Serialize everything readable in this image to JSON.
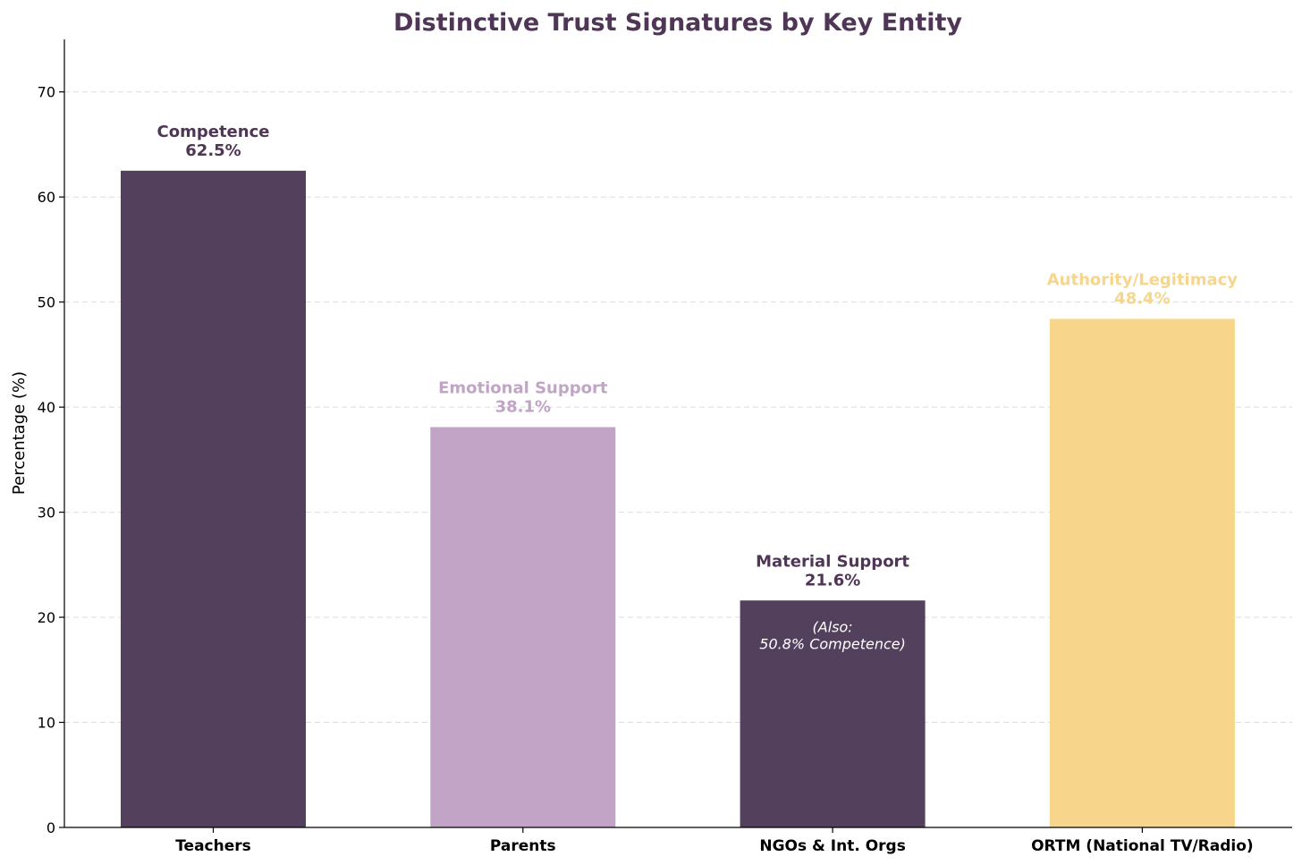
{
  "chart_data": {
    "type": "bar",
    "title": "Distinctive Trust Signatures by Key Entity",
    "xlabel": "",
    "ylabel": "Percentage (%)",
    "ylim": [
      0,
      75
    ],
    "yticks": [
      0,
      10,
      20,
      30,
      40,
      50,
      60,
      70
    ],
    "grid": "horizontal dashed",
    "categories": [
      "Teachers",
      "Parents",
      "NGOs & Int. Orgs",
      "ORTM (National TV/Radio)"
    ],
    "values": [
      62.5,
      38.1,
      21.6,
      48.4
    ],
    "value_labels": [
      "62.5%",
      "38.1%",
      "21.6%",
      "48.4%"
    ],
    "dimensions": [
      "Competence",
      "Emotional Support",
      "Material Support",
      "Authority/Legitimacy"
    ],
    "bar_colors": [
      "#53405c",
      "#c2a4c7",
      "#53405c",
      "#f7d58a"
    ],
    "label_colors": [
      "#4f3556",
      "#c2a4c7",
      "#4f3556",
      "#f7d58a"
    ],
    "annotation": {
      "category": "NGOs & Int. Orgs",
      "lines": [
        "(Also:",
        "50.8% Competence)"
      ]
    },
    "title_color": "#4f3556"
  }
}
